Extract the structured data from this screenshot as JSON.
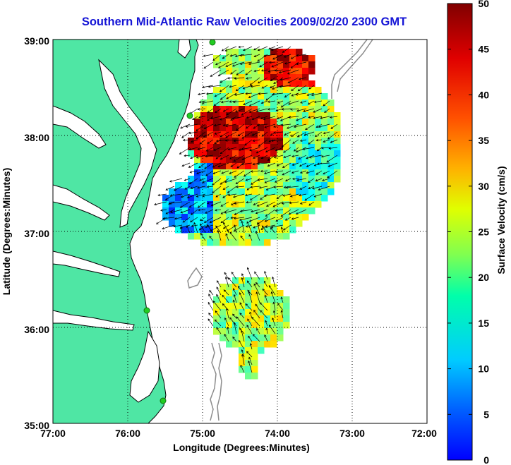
{
  "title": "Southern Mid-Atlantic Raw Velocities 2009/02/20 2300 GMT",
  "map": {
    "xlabel": "Longitude (Degrees:Minutes)",
    "ylabel": "Latitude (Degrees:Minutes)",
    "lon_range": [
      -77,
      -72
    ],
    "lat_range": [
      35,
      39
    ],
    "x_ticks": [
      "77:00",
      "76:00",
      "75:00",
      "74:00",
      "73:00",
      "72:00"
    ],
    "y_ticks": [
      "35:00",
      "36:00",
      "37:00",
      "38:00",
      "39:00"
    ],
    "land_color": "#4fe6a4",
    "water_color": "#ffffff",
    "coast_color": "#000000",
    "bathymetry_color": "#8c8c8c",
    "station_color": "#22cc22"
  },
  "colorbar": {
    "label": "Surface Velocity (cm/s)",
    "ticks": [
      "0",
      "5",
      "10",
      "15",
      "20",
      "25",
      "30",
      "35",
      "40",
      "45",
      "50"
    ],
    "range": [
      0,
      50
    ],
    "colormap": "jet"
  }
}
